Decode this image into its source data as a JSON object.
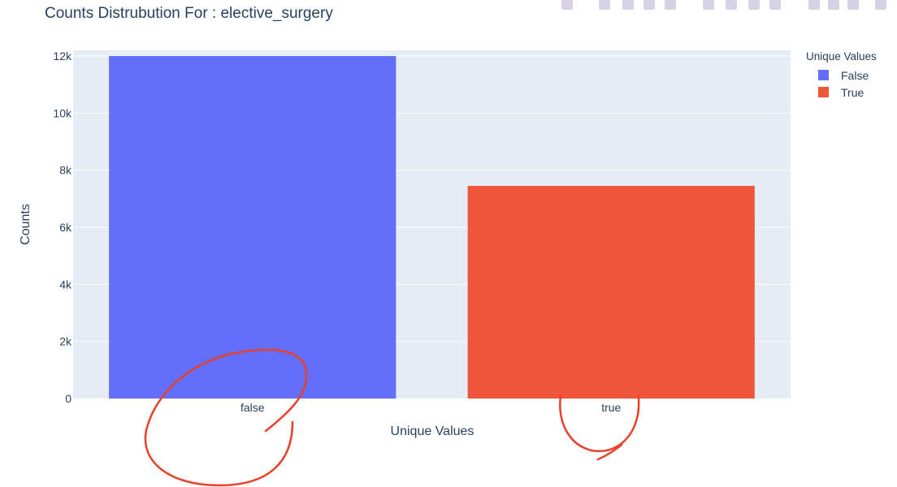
{
  "chart_data": {
    "type": "bar",
    "title": "Counts Distrubution For : elective_surgery",
    "xlabel": "Unique Values",
    "ylabel": "Counts",
    "categories": [
      "false",
      "true"
    ],
    "series": [
      {
        "name": "False",
        "category": "false",
        "value": 12000,
        "color": "#636efa"
      },
      {
        "name": "True",
        "category": "true",
        "value": 7450,
        "color": "#ef553b"
      }
    ],
    "ylim": [
      0,
      12200
    ],
    "yticks": [
      0,
      2000,
      4000,
      6000,
      8000,
      10000,
      12000
    ],
    "ytick_labels": [
      "0",
      "2k",
      "4k",
      "6k",
      "8k",
      "10k",
      "12k"
    ],
    "grid": true,
    "legend_title": "Unique Values",
    "legend_placement": "top-right",
    "plot_background": "#e5ecf6"
  },
  "modebar": {
    "icons": [
      "camera-icon",
      "zoom-icon",
      "pan-icon",
      "box-select-icon",
      "lasso-select-icon",
      "zoom-in-icon",
      "zoom-out-icon",
      "autoscale-icon",
      "reset-axes-icon",
      "spike-lines-icon",
      "hover-closest-icon",
      "hover-compare-icon",
      "plotly-logo-icon"
    ]
  },
  "annotations": {
    "ink_color": "#e8402a"
  }
}
